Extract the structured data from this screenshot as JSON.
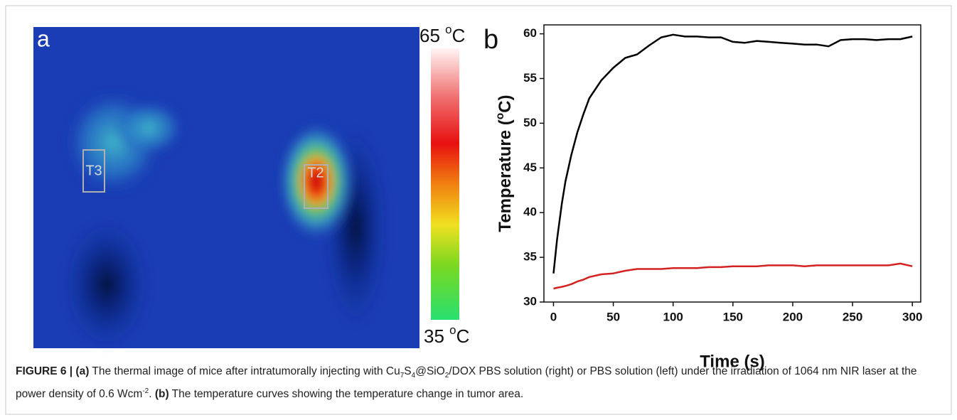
{
  "panel_labels": {
    "a": "a",
    "b": "b"
  },
  "thermal": {
    "box_left": "T3",
    "box_right": "T2",
    "colorbar_top": [
      "65 ",
      "o",
      "C"
    ],
    "colorbar_bottom": [
      "35 ",
      "o",
      "C"
    ]
  },
  "chart_data": {
    "type": "line",
    "x_label": "Time (s)",
    "y_label": [
      "Temperature (",
      "o",
      "C)"
    ],
    "x": [
      0,
      3,
      7,
      10,
      15,
      20,
      25,
      30,
      40,
      50,
      60,
      70,
      80,
      90,
      100,
      110,
      120,
      130,
      140,
      150,
      160,
      170,
      180,
      190,
      200,
      210,
      220,
      230,
      240,
      250,
      260,
      270,
      280,
      290,
      300
    ],
    "series": [
      {
        "color": "#000000",
        "values": [
          33.2,
          37,
          41,
          43.5,
          46.5,
          49,
          51,
          52.8,
          54.8,
          56.2,
          57.3,
          57.7,
          58.7,
          59.6,
          59.9,
          59.7,
          59.7,
          59.6,
          59.6,
          59.1,
          59.0,
          59.2,
          59.1,
          59.0,
          58.9,
          58.8,
          58.8,
          58.6,
          59.3,
          59.4,
          59.4,
          59.3,
          59.4,
          59.4,
          59.7
        ]
      },
      {
        "color": "#d42222",
        "values": [
          31.5,
          31.6,
          31.7,
          31.8,
          32.0,
          32.3,
          32.5,
          32.8,
          33.1,
          33.2,
          33.5,
          33.7,
          33.7,
          33.7,
          33.8,
          33.8,
          33.8,
          33.9,
          33.9,
          34.0,
          34.0,
          34.0,
          34.1,
          34.1,
          34.1,
          34.0,
          34.1,
          34.1,
          34.1,
          34.1,
          34.1,
          34.1,
          34.1,
          34.3,
          34.0
        ]
      }
    ],
    "xlim": [
      -8,
      307
    ],
    "ylim": [
      30,
      61
    ],
    "xticks": [
      0,
      50,
      100,
      150,
      200,
      250,
      300
    ],
    "yticks": [
      30,
      35,
      40,
      45,
      50,
      55,
      60
    ]
  },
  "caption": [
    {
      "text": "FIGURE 6 | (a)",
      "style": "b"
    },
    {
      "text": " The thermal image of mice after intratumorally injecting with Cu",
      "style": "n"
    },
    {
      "text": "7",
      "style": "sub"
    },
    {
      "text": "S",
      "style": "n"
    },
    {
      "text": "4",
      "style": "sub"
    },
    {
      "text": "@SiO",
      "style": "n"
    },
    {
      "text": "2",
      "style": "sub"
    },
    {
      "text": "/DOX PBS solution (right) or PBS solution (left) under the irradiation of 1064 nm NIR laser at the power density of 0.6 Wcm",
      "style": "n"
    },
    {
      "text": "-2",
      "style": "sup"
    },
    {
      "text": ". ",
      "style": "n"
    },
    {
      "text": "(b)",
      "style": "b"
    },
    {
      "text": " The temperature curves showing the temperature change in tumor area.",
      "style": "n"
    }
  ]
}
